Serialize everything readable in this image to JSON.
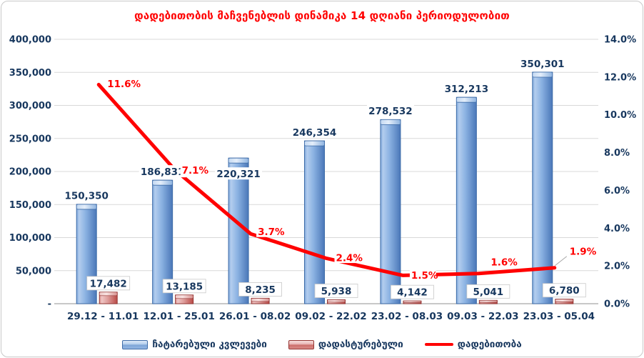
{
  "title": "დადებითობის მაჩვენებლის დინამიკა 14 დღიანი პერიოდულობით",
  "colors": {
    "title": "#ff0000",
    "axis_text": "#17375e",
    "line": "#ff0000",
    "bar_blue": "#4f81bd",
    "bar_red": "#c0504d",
    "gridline": "#d9d9d9"
  },
  "legend": {
    "tests_label": "ჩატარებული კვლევები",
    "confirmed_label": "დადასტურებული",
    "positivity_label": "დადებითობა"
  },
  "chart_data": {
    "type": "bar",
    "subtype": "clustered-bars-with-line",
    "title": "დადებითობის მაჩვენებლის დინამიკა 14 დღიანი პერიოდულობით",
    "categories": [
      "29.12 - 11.01",
      "12.01 - 25.01",
      "26.01 - 08.02",
      "09.02 - 22.02",
      "23.02 - 08.03",
      "09.03 - 22.03",
      "23.03 - 05.04"
    ],
    "series": [
      {
        "name": "ჩატარებული კვლევები",
        "type": "bar",
        "axis": "left",
        "values": [
          150350,
          186831,
          220321,
          246354,
          278532,
          312213,
          350301
        ],
        "labels": [
          "150,350",
          "186,831",
          "220,321",
          "246,354",
          "278,532",
          "312,213",
          "350,301"
        ]
      },
      {
        "name": "დადასტურებული",
        "type": "bar",
        "axis": "left",
        "values": [
          17482,
          13185,
          8235,
          5938,
          4142,
          5041,
          6780
        ],
        "labels": [
          "17,482",
          "13,185",
          "8,235",
          "5,938",
          "4,142",
          "5,041",
          "6,780"
        ]
      },
      {
        "name": "დადებითობა",
        "type": "line",
        "axis": "right",
        "values": [
          11.6,
          7.1,
          3.7,
          2.4,
          1.5,
          1.6,
          1.9
        ],
        "labels": [
          "11.6%",
          "7.1%",
          "3.7%",
          "2.4%",
          "1.5%",
          "1.6%",
          "1.9%"
        ]
      }
    ],
    "left_axis": {
      "min": 0,
      "max": 400000,
      "step": 50000,
      "tick_labels": [
        "-",
        "50,000",
        "100,000",
        "150,000",
        "200,000",
        "250,000",
        "300,000",
        "350,000",
        "400,000"
      ]
    },
    "right_axis": {
      "min": 0,
      "max": 14,
      "step": 2,
      "tick_labels": [
        "0.0%",
        "2.0%",
        "4.0%",
        "6.0%",
        "8.0%",
        "10.0%",
        "12.0%",
        "14.0%"
      ]
    },
    "grid": true,
    "legend_position": "bottom"
  }
}
